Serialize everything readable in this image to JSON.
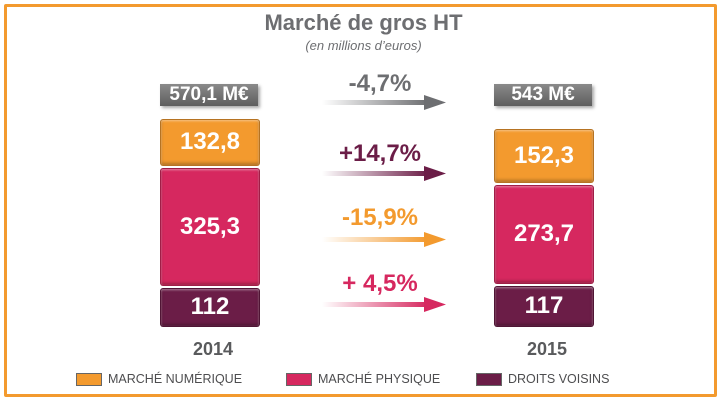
{
  "header": {
    "title": "Marché de gros HT",
    "subtitle": "(en millions d’euros)"
  },
  "colors": {
    "numerique": "#f39a2e",
    "physique": "#d6285f",
    "voisins": "#6b1d47",
    "total": "#6d6e71",
    "frame": "#f39a2e"
  },
  "chart_data": {
    "type": "bar",
    "stacked": true,
    "title": "Marché de gros HT",
    "subtitle": "(en millions d’euros)",
    "categories": [
      "2014",
      "2015"
    ],
    "totals": {
      "2014": "570,1 M€",
      "2015": "543 M€"
    },
    "series": [
      {
        "name": "DROITS VOISINS",
        "values": [
          112,
          117
        ],
        "labels": [
          "112",
          "117"
        ],
        "change": "+ 4,5%",
        "color": "#6b1d47"
      },
      {
        "name": "MARCHÉ PHYSIQUE",
        "values": [
          325.3,
          273.7
        ],
        "labels": [
          "325,3",
          "273,7"
        ],
        "change": "-15,9%",
        "color": "#d6285f"
      },
      {
        "name": "MARCHÉ NUMÉRIQUE",
        "values": [
          132.8,
          152.3
        ],
        "labels": [
          "132,8",
          "152,3"
        ],
        "change": "+14,7%",
        "color": "#f39a2e"
      }
    ],
    "total_change": "-4,7%",
    "change_colors": [
      "#7a7a7a",
      "#6b1d47",
      "#f39a2e",
      "#d6285f"
    ]
  },
  "legend": [
    {
      "label": "MARCHÉ NUMÉRIQUE",
      "color": "#f39a2e"
    },
    {
      "label": "MARCHÉ PHYSIQUE",
      "color": "#d6285f"
    },
    {
      "label": "DROITS VOISINS",
      "color": "#6b1d47"
    }
  ]
}
